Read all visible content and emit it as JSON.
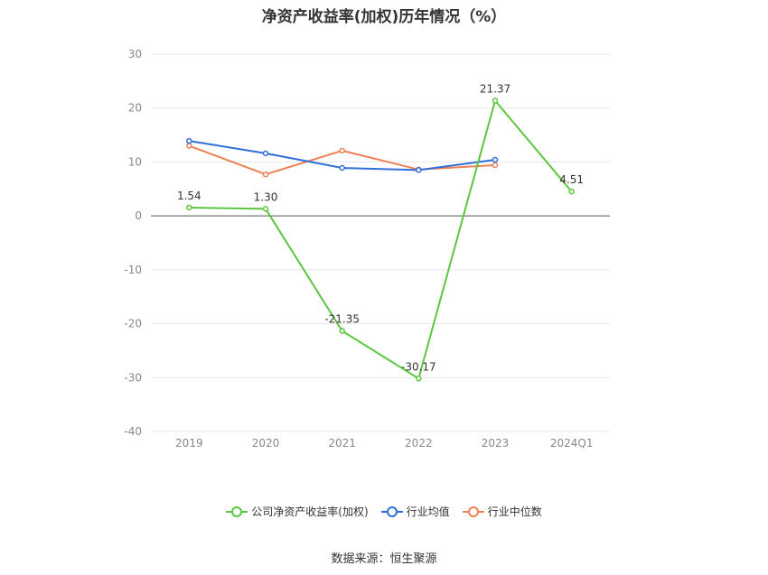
{
  "chart_data": {
    "type": "line",
    "title": "净资产收益率(加权)历年情况（%）",
    "categories": [
      "2019",
      "2020",
      "2021",
      "2022",
      "2023",
      "2024Q1"
    ],
    "ylim": [
      -40,
      30
    ],
    "yticks": [
      30,
      20,
      10,
      0,
      -10,
      -20,
      -30,
      -40
    ],
    "grid": true,
    "legend_position": "bottom",
    "series": [
      {
        "name": "公司净资产收益率(加权)",
        "color": "#5cc63f",
        "values": [
          1.54,
          1.3,
          -21.35,
          -30.17,
          21.37,
          4.51
        ],
        "labels": [
          "1.54",
          "1.30",
          "-21.35",
          "-30.17",
          "21.37",
          "4.51"
        ]
      },
      {
        "name": "行业均值",
        "color": "#2f6fd6",
        "values": [
          13.9,
          11.6,
          8.9,
          8.5,
          10.4,
          null
        ]
      },
      {
        "name": "行业中位数",
        "color": "#ef7f55",
        "values": [
          13.0,
          7.7,
          12.1,
          8.6,
          9.4,
          null
        ]
      }
    ]
  },
  "source": "数据来源：恒生聚源"
}
